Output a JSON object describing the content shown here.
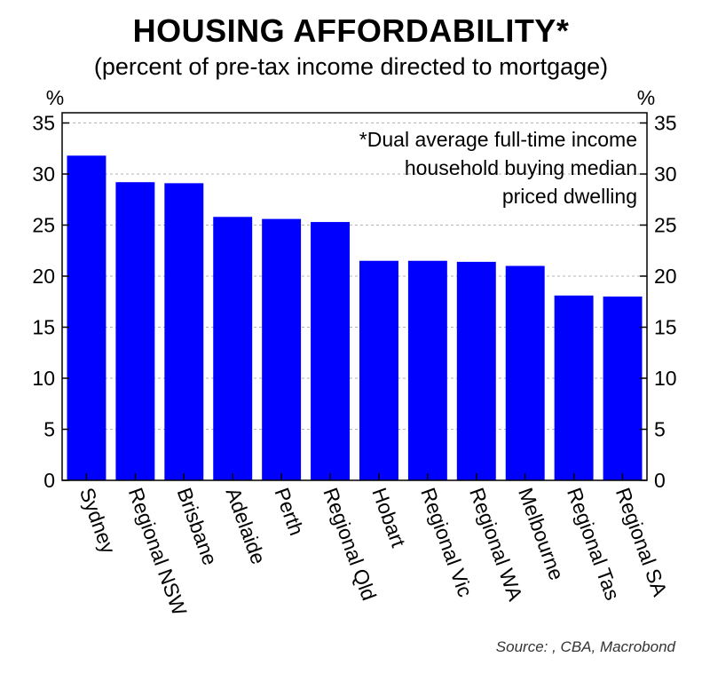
{
  "title": "HOUSING AFFORDABILITY*",
  "subtitle": "(percent of pre-tax income directed to mortgage)",
  "source": "Source: , CBA, Macrobond",
  "chart_data": {
    "type": "bar",
    "categories": [
      "Sydney",
      "Regional NSW",
      "Brisbane",
      "Adelaide",
      "Perth",
      "Regional Qld",
      "Hobart",
      "Regional Vic",
      "Regional WA",
      "Melbourne",
      "Regional Tas",
      "Regional SA"
    ],
    "values": [
      31.8,
      29.2,
      29.1,
      25.8,
      25.6,
      25.3,
      21.5,
      21.5,
      21.4,
      21.0,
      18.1,
      18.0
    ],
    "ylim": [
      0,
      36
    ],
    "yticks": [
      0,
      5,
      10,
      15,
      20,
      25,
      30,
      35
    ],
    "y_unit_left": "%",
    "y_unit_right": "%",
    "bar_color": "#0000ff",
    "grid": true,
    "annotation": [
      "*Dual average full-time income",
      "household buying median",
      "priced dwelling"
    ]
  }
}
